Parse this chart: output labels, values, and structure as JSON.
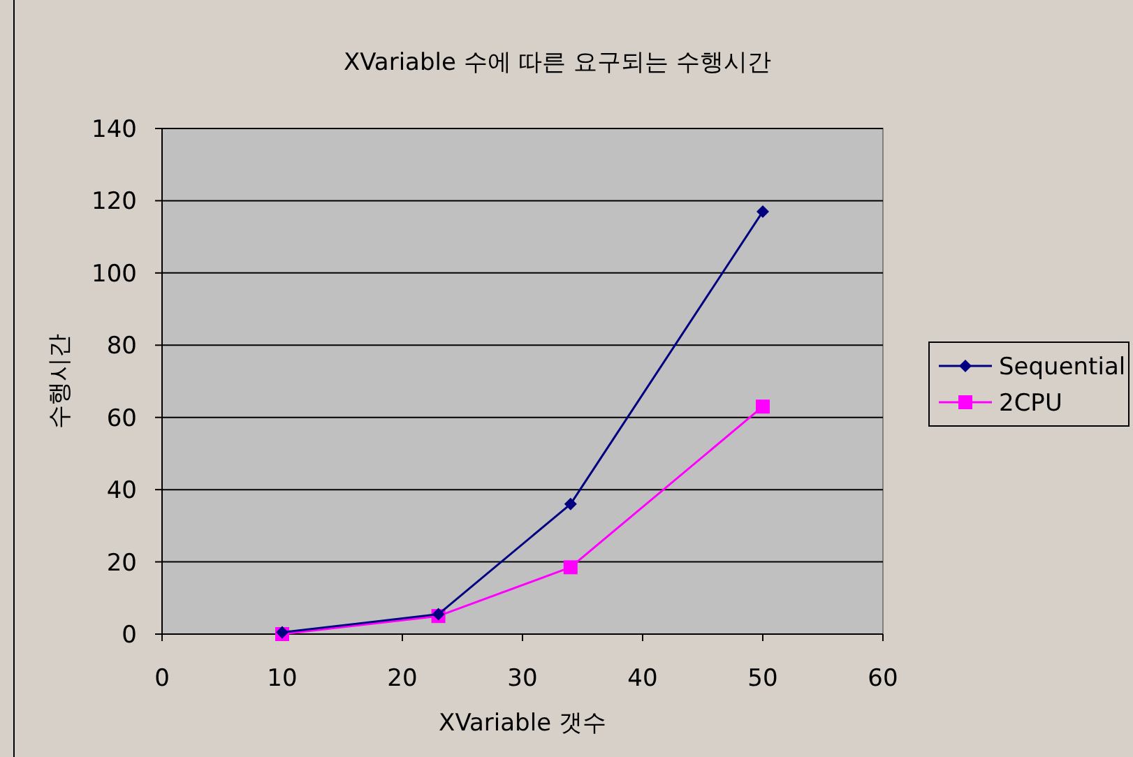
{
  "chart_data": {
    "type": "line",
    "title": "XVariable 수에 따른 요구되는 수행시간",
    "xlabel": "XVariable 갯수",
    "ylabel": "수행시간",
    "xlim": [
      0,
      60
    ],
    "xticks": [
      0,
      10,
      20,
      30,
      40,
      50,
      60
    ],
    "ylim": [
      0,
      140
    ],
    "yticks": [
      0,
      20,
      40,
      60,
      80,
      100,
      120,
      140
    ],
    "grid": "y",
    "legend": "right",
    "series": [
      {
        "name": "Sequential",
        "color": "#000080",
        "marker": "diamond",
        "x": [
          10,
          23,
          34,
          50
        ],
        "values": [
          0.5,
          5.5,
          36,
          117
        ]
      },
      {
        "name": "2CPU",
        "color": "#ff00ff",
        "marker": "square",
        "x": [
          10,
          23,
          34,
          50
        ],
        "values": [
          0,
          5,
          18.5,
          63
        ]
      }
    ]
  }
}
